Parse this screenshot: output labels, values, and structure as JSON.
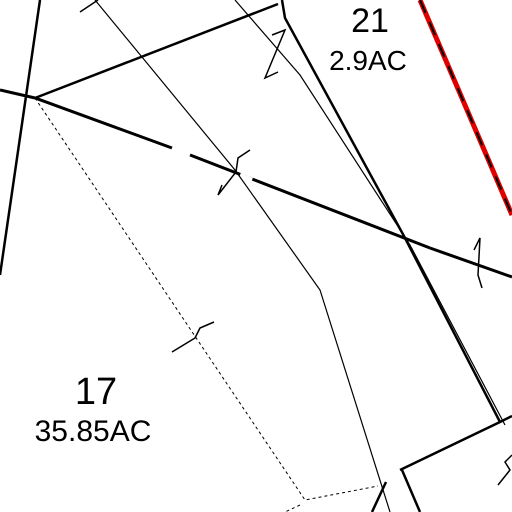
{
  "parcels": [
    {
      "number": "21",
      "area": "2.9AC"
    },
    {
      "number": "17",
      "area": "35.85AC"
    }
  ]
}
